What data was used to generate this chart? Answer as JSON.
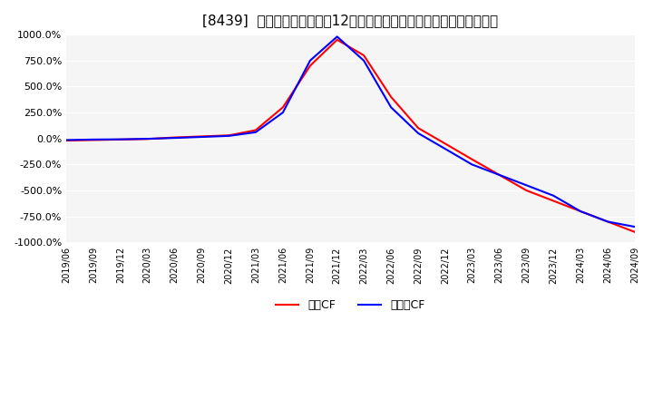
{
  "title": "[8439]  キャッシュフローの12か月移動合計の対前年同期増減率の推移",
  "legend_labels": [
    "営業CF",
    "フリーCF"
  ],
  "legend_colors": [
    "#ff0000",
    "#0000ff"
  ],
  "ylim": [
    -1000,
    1000
  ],
  "yticks": [
    -1000,
    -750,
    -500,
    -250,
    0,
    250,
    500,
    750,
    1000
  ],
  "ytick_labels": [
    "-1000.0%",
    "-750.0%",
    "-500.0%",
    "-250.0%",
    "0.0%",
    "250.0%",
    "500.0%",
    "750.0%",
    "1000.0%"
  ],
  "background_color": "#ffffff",
  "plot_bg_color": "#f5f5f5",
  "grid_color": "#ffffff",
  "営業CF_dates": [
    "2019-06",
    "2019-09",
    "2019-12",
    "2020-03",
    "2020-06",
    "2020-09",
    "2020-12",
    "2021-03",
    "2021-06",
    "2021-09",
    "2021-12",
    "2022-03",
    "2022-06",
    "2022-09",
    "2022-12",
    "2023-03",
    "2023-06",
    "2023-09",
    "2023-12",
    "2024-03",
    "2024-06",
    "2024-09"
  ],
  "営業CF_values": [
    -20,
    -15,
    -10,
    -5,
    10,
    20,
    30,
    80,
    300,
    700,
    950,
    800,
    400,
    100,
    -50,
    -200,
    -350,
    -500,
    -600,
    -700,
    -800,
    -900
  ],
  "フリーCF_dates": [
    "2019-06",
    "2019-09",
    "2019-12",
    "2020-03",
    "2020-06",
    "2020-09",
    "2020-12",
    "2021-03",
    "2021-06",
    "2021-09",
    "2021-12",
    "2022-03",
    "2022-06",
    "2022-09",
    "2022-12",
    "2023-03",
    "2023-06",
    "2023-09",
    "2023-12",
    "2024-03",
    "2024-06",
    "2024-09"
  ],
  "フリーCF_values": [
    -15,
    -10,
    -8,
    -3,
    5,
    15,
    25,
    60,
    250,
    750,
    980,
    750,
    300,
    50,
    -100,
    -250,
    -350,
    -450,
    -550,
    -700,
    -800,
    -850
  ],
  "xtick_dates": [
    "2019-06",
    "2019-09",
    "2019-12",
    "2020-03",
    "2020-06",
    "2020-09",
    "2020-12",
    "2021-03",
    "2021-06",
    "2021-09",
    "2021-12",
    "2022-03",
    "2022-06",
    "2022-09",
    "2022-12",
    "2023-03",
    "2023-06",
    "2023-09",
    "2023-12",
    "2024-03",
    "2024-06",
    "2024-09"
  ],
  "xtick_labels": [
    "2019/06",
    "2019/09",
    "2019/12",
    "2020/03",
    "2020/06",
    "2020/09",
    "2020/12",
    "2021/03",
    "2021/06",
    "2021/09",
    "2021/12",
    "2022/03",
    "2022/06",
    "2022/09",
    "2022/12",
    "2023/03",
    "2023/06",
    "2023/09",
    "2023/12",
    "2024/03",
    "2024/06",
    "2024/09"
  ]
}
